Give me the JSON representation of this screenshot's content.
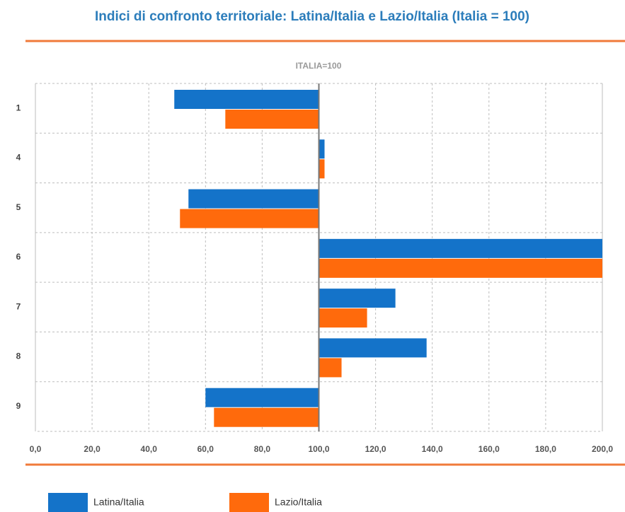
{
  "chart_data": {
    "type": "hbar",
    "title": "Indici di confronto territoriale: Latina/Italia e Lazio/Italia (Italia = 100)",
    "subtitle": "ITALIA=100",
    "categories": [
      "1",
      "4",
      "5",
      "6",
      "7",
      "8",
      "9"
    ],
    "base": 100,
    "series": [
      {
        "name": "Latina/Italia",
        "color": "#1473c9",
        "values": [
          49,
          102,
          54,
          200,
          127,
          138,
          60
        ]
      },
      {
        "name": "Lazio/Italia",
        "color": "#ff6a0c",
        "values": [
          67,
          102,
          51,
          200,
          117,
          108,
          63
        ]
      }
    ],
    "xlim": [
      0,
      200
    ],
    "xticks": [
      {
        "value": 0,
        "label": "0,0"
      },
      {
        "value": 20,
        "label": "20,0"
      },
      {
        "value": 40,
        "label": "40,0"
      },
      {
        "value": 60,
        "label": "60,0"
      },
      {
        "value": 80,
        "label": "80,0"
      },
      {
        "value": 100,
        "label": "100,0"
      },
      {
        "value": 120,
        "label": "120,0"
      },
      {
        "value": 140,
        "label": "140,0"
      },
      {
        "value": 160,
        "label": "160,0"
      },
      {
        "value": 180,
        "label": "180,0"
      },
      {
        "value": 200,
        "label": "200,0"
      }
    ],
    "grid": true
  }
}
